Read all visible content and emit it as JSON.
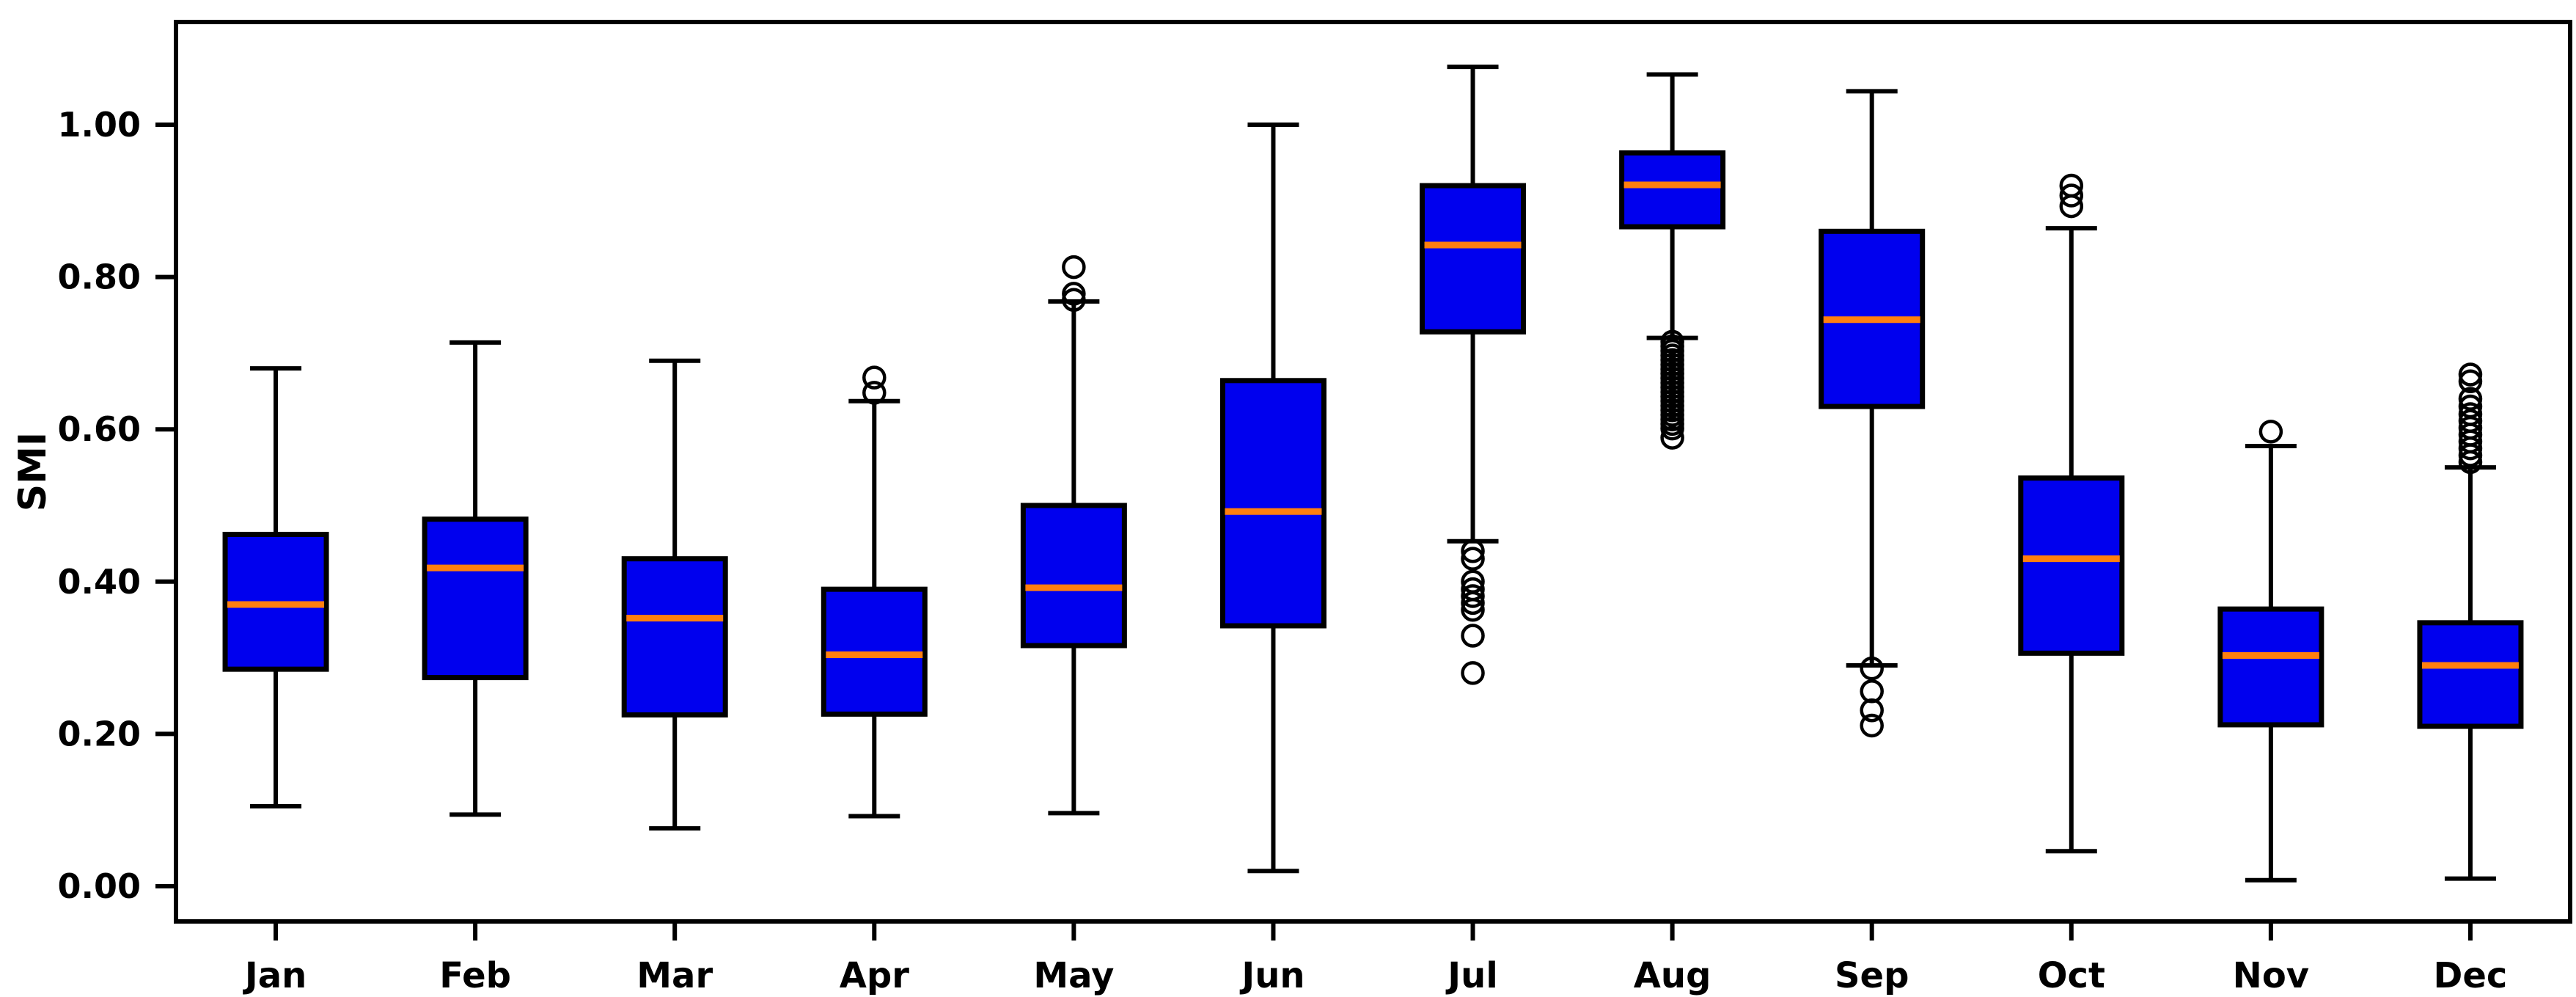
{
  "chart_data": {
    "type": "boxplot",
    "title": "",
    "xlabel": "",
    "ylabel": "SMI",
    "ylim": [
      -0.05,
      1.14
    ],
    "grid": false,
    "ytick_values": [
      0.0,
      0.2,
      0.4,
      0.6,
      0.8,
      1.0
    ],
    "ytick_labels": [
      "0.00",
      "0.20",
      "0.40",
      "0.60",
      "0.80",
      "1.00"
    ],
    "categories": [
      "Jan",
      "Feb",
      "Mar",
      "Apr",
      "May",
      "Jun",
      "Jul",
      "Aug",
      "Sep",
      "Oct",
      "Nov",
      "Dec"
    ],
    "series": [
      {
        "month": "Jan",
        "whisker_low": 0.105,
        "q1": 0.285,
        "median": 0.37,
        "q3": 0.462,
        "whisker_high": 0.68,
        "outliers": []
      },
      {
        "month": "Feb",
        "whisker_low": 0.094,
        "q1": 0.274,
        "median": 0.418,
        "q3": 0.482,
        "whisker_high": 0.714,
        "outliers": []
      },
      {
        "month": "Mar",
        "whisker_low": 0.076,
        "q1": 0.225,
        "median": 0.352,
        "q3": 0.43,
        "whisker_high": 0.69,
        "outliers": []
      },
      {
        "month": "Apr",
        "whisker_low": 0.092,
        "q1": 0.226,
        "median": 0.304,
        "q3": 0.39,
        "whisker_high": 0.637,
        "outliers": [
          0.668,
          0.648
        ]
      },
      {
        "month": "May",
        "whisker_low": 0.096,
        "q1": 0.316,
        "median": 0.392,
        "q3": 0.5,
        "whisker_high": 0.768,
        "outliers": [
          0.813,
          0.778,
          0.77
        ]
      },
      {
        "month": "Jun",
        "whisker_low": 0.02,
        "q1": 0.342,
        "median": 0.492,
        "q3": 0.664,
        "whisker_high": 1.0,
        "outliers": []
      },
      {
        "month": "Jul",
        "whisker_low": 0.453,
        "q1": 0.728,
        "median": 0.842,
        "q3": 0.92,
        "whisker_high": 1.076,
        "outliers": [
          0.44,
          0.43,
          0.4,
          0.39,
          0.381,
          0.372,
          0.363,
          0.329,
          0.28
        ]
      },
      {
        "month": "Aug",
        "whisker_low": 0.72,
        "q1": 0.866,
        "median": 0.921,
        "q3": 0.963,
        "whisker_high": 1.066,
        "outliers": [
          0.715,
          0.709,
          0.703,
          0.697,
          0.691,
          0.685,
          0.679,
          0.673,
          0.667,
          0.661,
          0.655,
          0.649,
          0.643,
          0.637,
          0.631,
          0.625,
          0.619,
          0.613,
          0.607,
          0.601,
          0.589
        ]
      },
      {
        "month": "Sep",
        "whisker_low": 0.29,
        "q1": 0.63,
        "median": 0.744,
        "q3": 0.86,
        "whisker_high": 1.044,
        "outliers": [
          0.286,
          0.256,
          0.231,
          0.211
        ]
      },
      {
        "month": "Oct",
        "whisker_low": 0.046,
        "q1": 0.306,
        "median": 0.43,
        "q3": 0.536,
        "whisker_high": 0.864,
        "outliers": [
          0.92,
          0.907,
          0.893
        ]
      },
      {
        "month": "Nov",
        "whisker_low": 0.008,
        "q1": 0.212,
        "median": 0.303,
        "q3": 0.364,
        "whisker_high": 0.578,
        "outliers": [
          0.597
        ]
      },
      {
        "month": "Dec",
        "whisker_low": 0.01,
        "q1": 0.21,
        "median": 0.29,
        "q3": 0.346,
        "whisker_high": 0.55,
        "outliers": [
          0.672,
          0.663,
          0.64,
          0.63,
          0.62,
          0.611,
          0.602,
          0.593,
          0.584,
          0.575,
          0.566,
          0.557
        ]
      }
    ],
    "colors": {
      "box_fill": "#0000ee",
      "box_edge": "#000000",
      "median_line": "#ff7f0e",
      "whisker": "#000000",
      "outlier_edge": "#000000",
      "axis": "#000000",
      "background": "#ffffff"
    },
    "legend": null
  }
}
